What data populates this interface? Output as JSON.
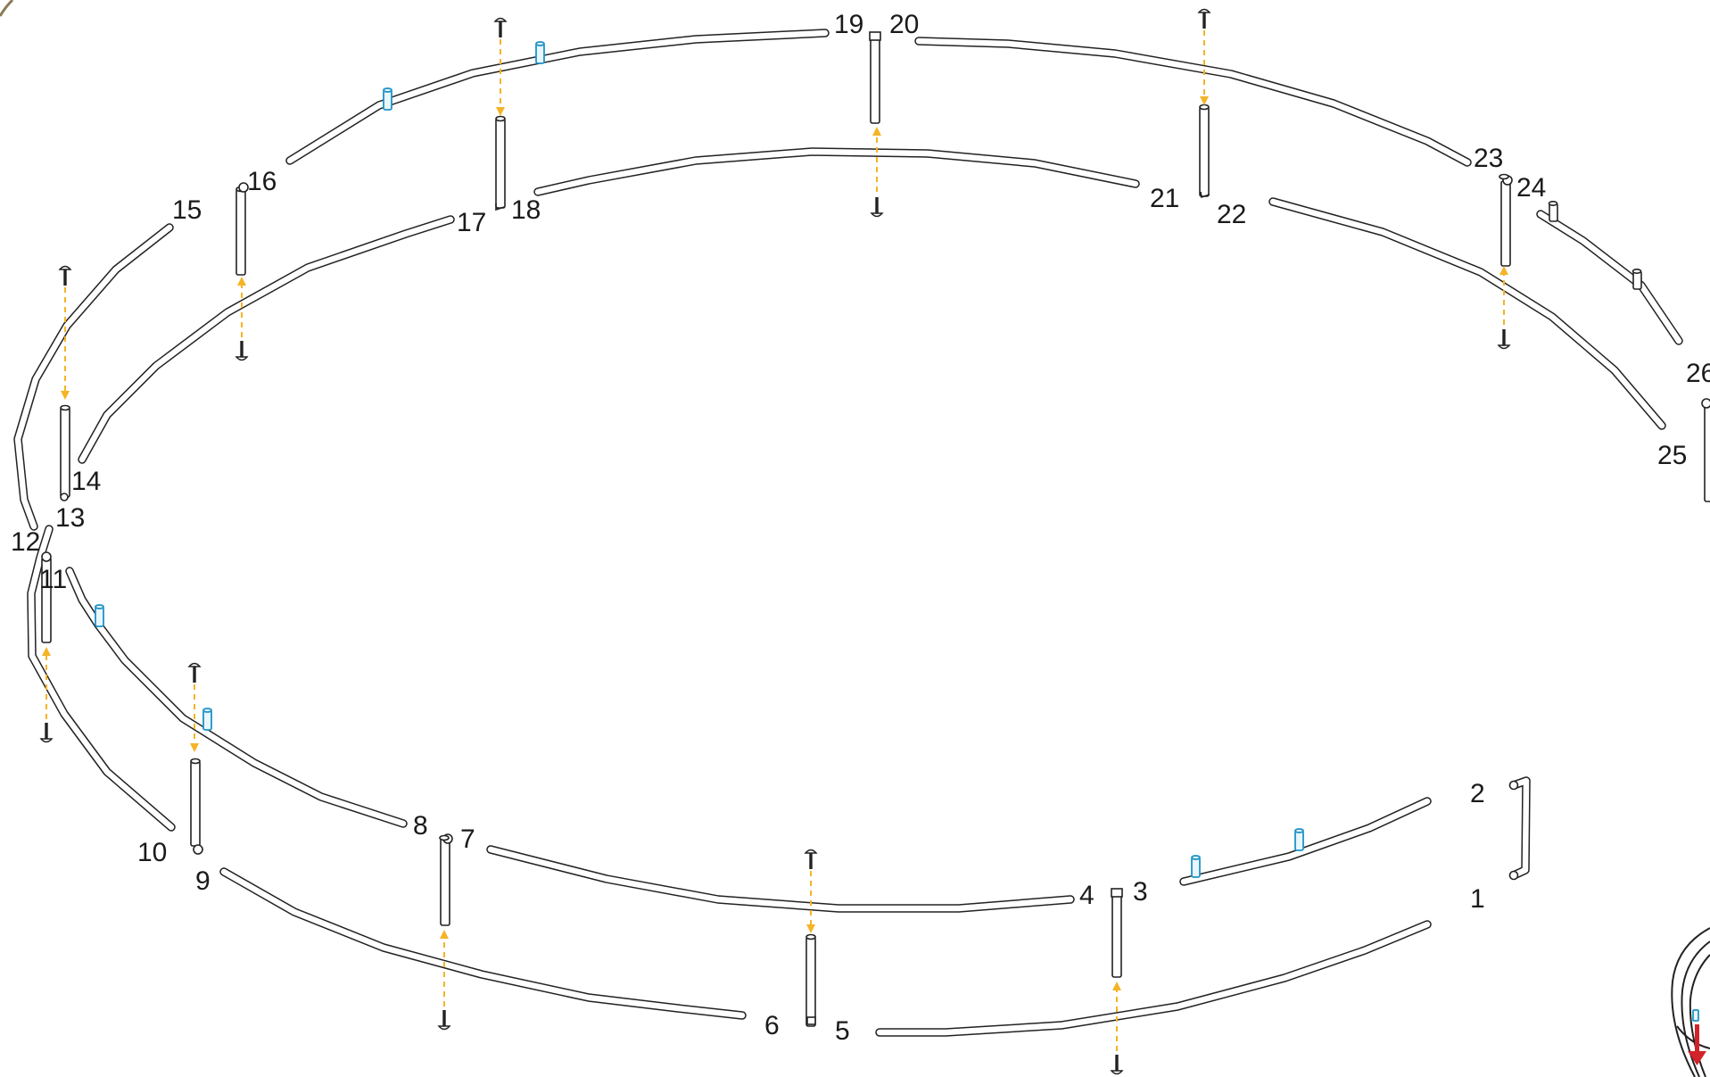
{
  "diagram": {
    "part_labels": [
      "1",
      "2",
      "3",
      "4",
      "5",
      "6",
      "7",
      "8",
      "9",
      "10",
      "11",
      "12",
      "13",
      "14",
      "15",
      "16",
      "17",
      "18",
      "19",
      "20",
      "21",
      "22",
      "23",
      "24",
      "25",
      "26"
    ],
    "colors": {
      "tube_outline": "#222222",
      "tube_fill": "#ffffff",
      "insert_plug": "#1d93c6",
      "insertion_arrow": "#f5b325",
      "direction_arrow": "#d2232a"
    },
    "icons": {
      "screw": "screw-icon",
      "plug": "plug-icon",
      "arrow": "dashed-arrow",
      "corner_arrow": "down-arrow-icon"
    }
  }
}
